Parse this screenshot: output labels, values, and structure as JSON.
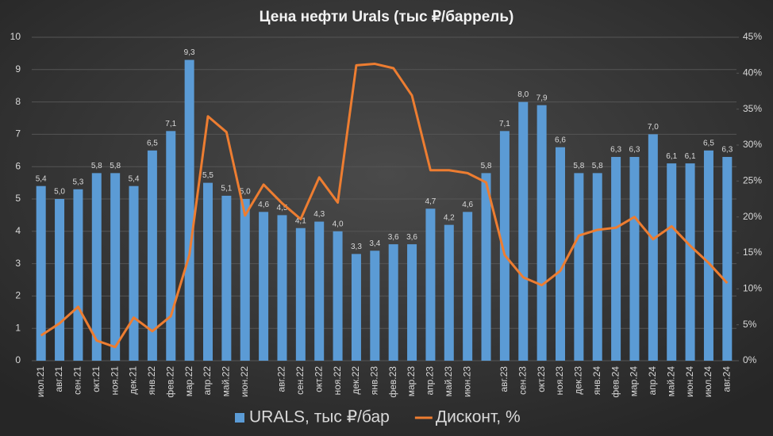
{
  "chart_data": {
    "type": "bar_line",
    "title": "Цена нефти Urals (тыс ₽/баррель)",
    "categories": [
      "июл.21",
      "авг.21",
      "сен.21",
      "окт.21",
      "ноя.21",
      "дек.21",
      "янв.22",
      "фев.22",
      "мар.22",
      "апр.22",
      "май.22",
      "июн.22",
      null,
      "авг.22",
      "сен.22",
      "окт.22",
      "ноя.22",
      "дек.22",
      "янв.23",
      "фев.23",
      "мар.23",
      "апр.23",
      "май.23",
      "июн.23",
      null,
      "авг.23",
      "сен.23",
      "окт.23",
      "ноя.23",
      "дек.23",
      "янв.24",
      "фев.24",
      "мар.24",
      "апр.24",
      "май.24",
      "июн.24",
      "июл.24",
      "авг.24"
    ],
    "series": [
      {
        "name": "URALS, тыс ₽/бар",
        "color": "#5b9bd5",
        "type": "bar",
        "values": [
          5.4,
          5.0,
          5.3,
          5.8,
          5.8,
          5.4,
          6.5,
          7.1,
          9.3,
          5.5,
          5.1,
          5.0,
          4.6,
          4.5,
          4.1,
          4.3,
          4.0,
          3.3,
          3.4,
          3.6,
          3.6,
          4.7,
          4.2,
          4.6,
          5.8,
          7.1,
          8.0,
          7.9,
          6.6,
          5.8,
          5.8,
          6.3,
          6.3,
          7.0,
          6.1,
          6.1,
          6.5,
          6.3
        ],
        "value_labels": [
          "5,4",
          "5,0",
          "5,3",
          "5,8",
          "5,8",
          "5,4",
          "6,5",
          "7,1",
          "9,3",
          "5,5",
          "5,1",
          "5,0",
          "4,6",
          "4,5",
          "4,1",
          "4,3",
          "4,0",
          "3,3",
          "3,4",
          "3,6",
          "3,6",
          "4,7",
          "4,2",
          "4,6",
          "5,8",
          "7,1",
          "8,0",
          "7,9",
          "6,6",
          "5,8",
          "5,8",
          "6,3",
          "6,3",
          "7,0",
          "6,1",
          "6,1",
          "6,5",
          "6,3"
        ]
      },
      {
        "name": "Дисконт, %",
        "color": "#ed7d31",
        "type": "line",
        "axis": "y2",
        "values": [
          3.5,
          5.2,
          7.5,
          2.8,
          1.9,
          6.0,
          4.1,
          6.2,
          14.7,
          34.0,
          31.8,
          20.2,
          24.5,
          21.9,
          19.7,
          25.5,
          22.0,
          41.1,
          41.3,
          40.7,
          36.9,
          26.5,
          26.5,
          26.1,
          24.8,
          14.7,
          11.6,
          10.5,
          12.5,
          17.4,
          18.2,
          18.5,
          20.0,
          16.9,
          18.7,
          16.0,
          13.6,
          10.8
        ]
      }
    ],
    "ylim": [
      0,
      10
    ],
    "yticks": [
      0,
      1,
      2,
      3,
      4,
      5,
      6,
      7,
      8,
      9,
      10
    ],
    "y2lim": [
      0,
      45
    ],
    "y2ticks": [
      {
        "value": 0,
        "label": "0%"
      },
      {
        "value": 5,
        "label": "5%"
      },
      {
        "value": 10,
        "label": "10%"
      },
      {
        "value": 15,
        "label": "15%"
      },
      {
        "value": 20,
        "label": "20%"
      },
      {
        "value": 25,
        "label": "25%"
      },
      {
        "value": 30,
        "label": "30%"
      },
      {
        "value": 35,
        "label": "35%"
      },
      {
        "value": 40,
        "label": "40%"
      },
      {
        "value": 45,
        "label": "45%"
      }
    ],
    "grid": true,
    "legend": "bottom"
  }
}
